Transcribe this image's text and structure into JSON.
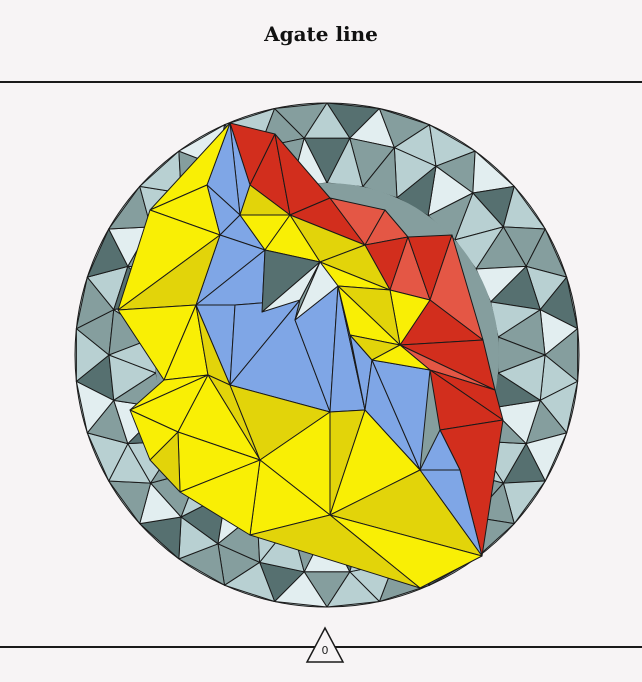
{
  "title": "Agate line",
  "counter": {
    "value": "0"
  },
  "colors": {
    "background": "#f7f4f5",
    "stroke": "#1a1a1a",
    "yellow": "#f9ef05",
    "dark_yellow": "#e2d40a",
    "blue": "#7fa6e6",
    "red": "#d22e1d",
    "light_red": "#e45745",
    "grey_dark": "#567070",
    "grey_mid": "#859e9e",
    "grey_light": "#b8d0d2",
    "grey_pale": "#e2eef0"
  }
}
